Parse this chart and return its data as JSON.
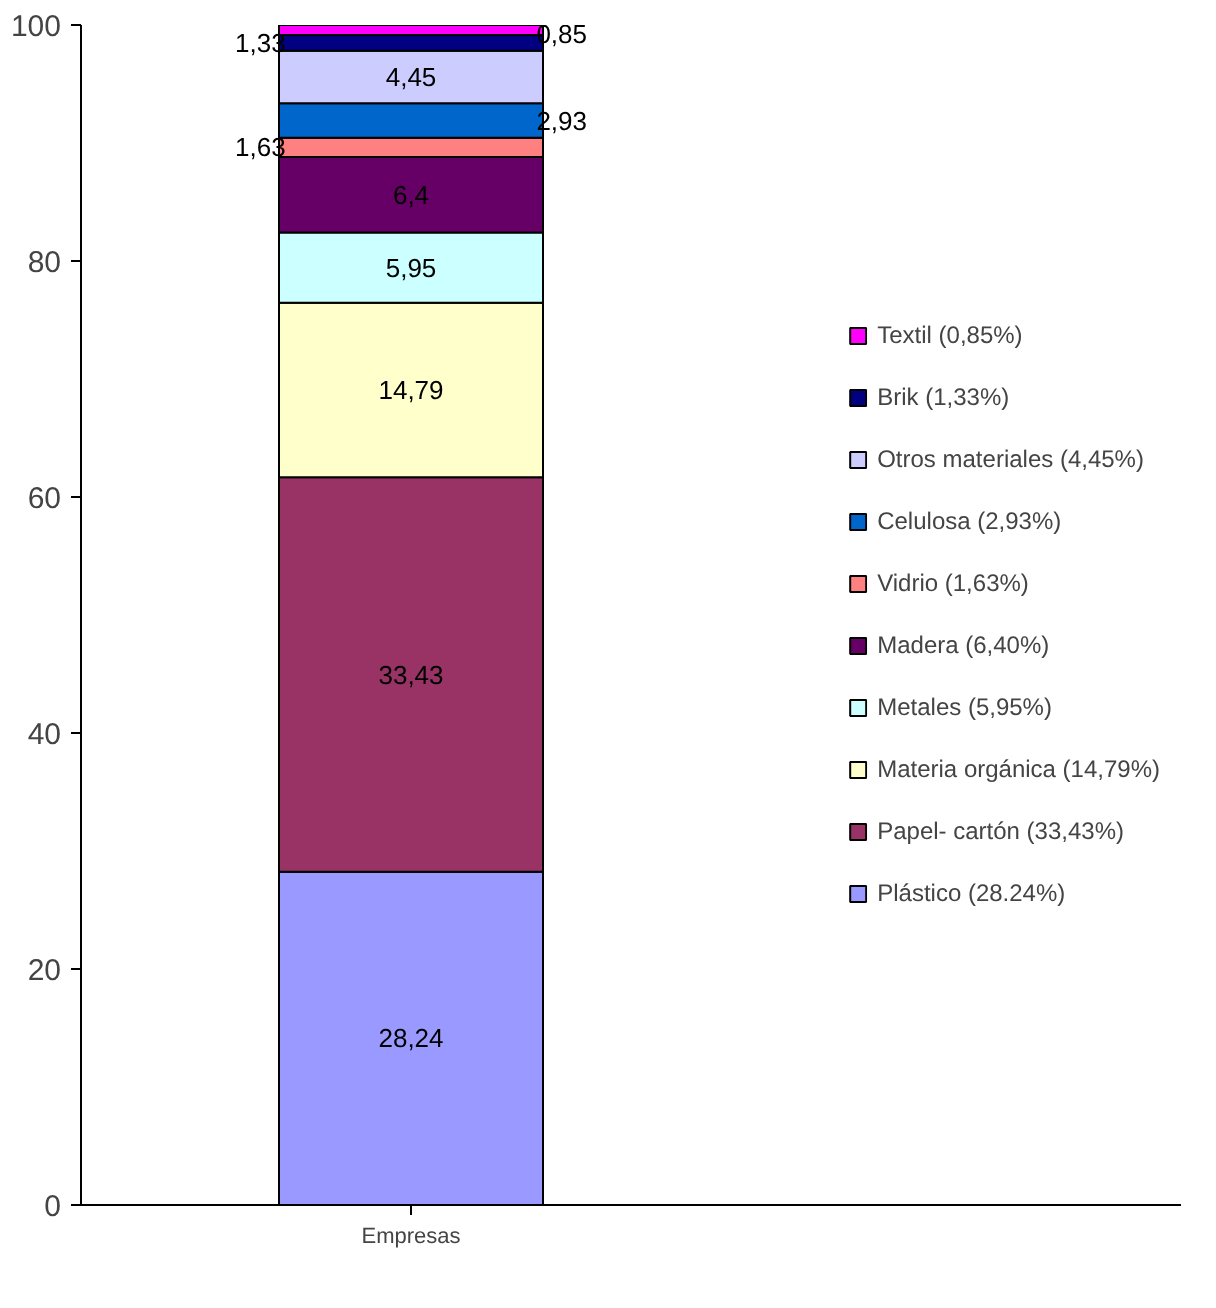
{
  "chart_data": {
    "type": "bar",
    "stacked": true,
    "categories": [
      "Empresas"
    ],
    "series": [
      {
        "name": "Plástico (28.24%)",
        "color": "#9999ff",
        "values": [
          28.24
        ],
        "value_labels": [
          "28,24"
        ]
      },
      {
        "name": "Papel- cartón (33,43%)",
        "color": "#993366",
        "values": [
          33.43
        ],
        "value_labels": [
          "33,43"
        ]
      },
      {
        "name": "Materia orgánica (14,79%)",
        "color": "#ffffcc",
        "values": [
          14.79
        ],
        "value_labels": [
          "14,79"
        ]
      },
      {
        "name": "Metales (5,95%)",
        "color": "#ccffff",
        "values": [
          5.95
        ],
        "value_labels": [
          "5,95"
        ]
      },
      {
        "name": "Madera (6,40%)",
        "color": "#660066",
        "values": [
          6.4
        ],
        "value_labels": [
          "6,4"
        ]
      },
      {
        "name": "Vidrio (1,63%)",
        "color": "#ff8080",
        "values": [
          1.63
        ],
        "value_labels": [
          "1,63"
        ]
      },
      {
        "name": "Celulosa (2,93%)",
        "color": "#0066cc",
        "values": [
          2.93
        ],
        "value_labels": [
          "2,93"
        ]
      },
      {
        "name": "Otros materiales (4,45%)",
        "color": "#ccccff",
        "values": [
          4.45
        ],
        "value_labels": [
          "4,45"
        ]
      },
      {
        "name": "Brik (1,33%)",
        "color": "#000080",
        "values": [
          1.33
        ],
        "value_labels": [
          "1,33"
        ]
      },
      {
        "name": "Textil (0,85%)",
        "color": "#ff00ff",
        "values": [
          0.85
        ],
        "value_labels": [
          "0,85"
        ]
      }
    ],
    "ylim": [
      0,
      100
    ],
    "yticks": [
      0,
      20,
      40,
      60,
      80,
      100
    ],
    "legend": "right"
  }
}
